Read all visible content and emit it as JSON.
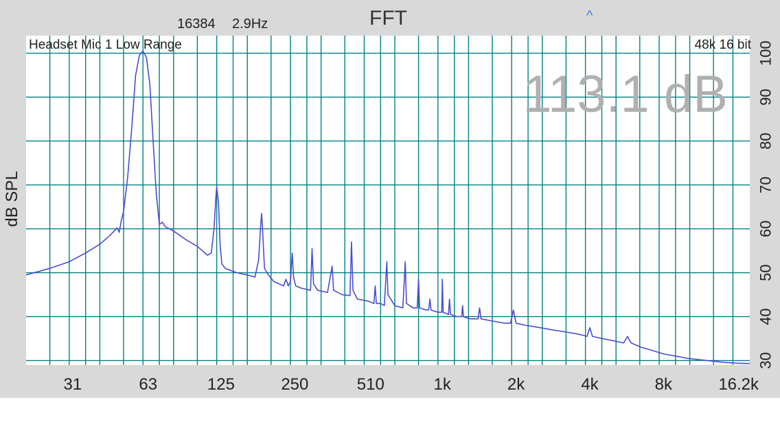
{
  "header": {
    "fft_size": "16384",
    "resolution": "2.9Hz",
    "title": "FFT",
    "caret_icon": "caret-up-icon",
    "caret_glyph": "^"
  },
  "colors": {
    "background": "#d9d9d9",
    "plot_background": "#ffffff",
    "grid": "#008080",
    "trace": "#4b4bd6",
    "readout": "#b0b0b0"
  },
  "chart_data": {
    "type": "line",
    "title": "FFT",
    "ylabel": "dB SPL",
    "xlabel": "",
    "x_scale": "log",
    "xlim": [
      20,
      18000
    ],
    "ylim": [
      29,
      104
    ],
    "grid": true,
    "input_label": "Headset Mic 1 Low Range",
    "format_label": "48k 16 bit",
    "level_readout": "113.1 dB",
    "x_ticks": [
      {
        "value": 31,
        "label": "31"
      },
      {
        "value": 63,
        "label": "63"
      },
      {
        "value": 125,
        "label": "125"
      },
      {
        "value": 250,
        "label": "250"
      },
      {
        "value": 510,
        "label": "510"
      },
      {
        "value": 1000,
        "label": "1k"
      },
      {
        "value": 2000,
        "label": "2k"
      },
      {
        "value": 4000,
        "label": "4k"
      },
      {
        "value": 8000,
        "label": "8k"
      },
      {
        "value": 16200,
        "label": "16.2k"
      }
    ],
    "y_ticks": [
      {
        "value": 30,
        "label": "30"
      },
      {
        "value": 40,
        "label": "40"
      },
      {
        "value": 50,
        "label": "50"
      },
      {
        "value": 60,
        "label": "60"
      },
      {
        "value": 70,
        "label": "70"
      },
      {
        "value": 80,
        "label": "80"
      },
      {
        "value": 90,
        "label": "90"
      },
      {
        "value": 100,
        "label": "100"
      }
    ],
    "series": [
      {
        "values": [
          [
            20,
            49.5
          ],
          [
            25,
            51
          ],
          [
            30,
            52.5
          ],
          [
            35,
            54.5
          ],
          [
            40,
            56.5
          ],
          [
            44,
            58.5
          ],
          [
            47,
            60.2
          ],
          [
            48,
            59.2
          ],
          [
            49,
            62
          ],
          [
            50,
            64
          ],
          [
            52,
            72
          ],
          [
            54,
            83
          ],
          [
            56,
            95
          ],
          [
            58,
            99.5
          ],
          [
            60,
            100.5
          ],
          [
            62,
            99
          ],
          [
            64,
            93
          ],
          [
            66,
            80
          ],
          [
            68,
            68
          ],
          [
            70,
            61
          ],
          [
            72,
            61.5
          ],
          [
            74,
            60.5
          ],
          [
            80,
            59.5
          ],
          [
            90,
            57.5
          ],
          [
            100,
            56
          ],
          [
            110,
            54
          ],
          [
            114,
            54.5
          ],
          [
            117,
            60
          ],
          [
            119,
            67
          ],
          [
            120,
            69.5
          ],
          [
            122,
            66
          ],
          [
            124,
            56
          ],
          [
            126,
            52
          ],
          [
            130,
            51
          ],
          [
            145,
            50
          ],
          [
            160,
            49.5
          ],
          [
            172,
            49
          ],
          [
            178,
            53
          ],
          [
            181,
            60
          ],
          [
            183,
            63.5
          ],
          [
            185,
            59
          ],
          [
            188,
            51
          ],
          [
            195,
            49.5
          ],
          [
            205,
            48
          ],
          [
            215,
            47.5
          ],
          [
            225,
            47
          ],
          [
            230,
            48.5
          ],
          [
            235,
            47
          ],
          [
            240,
            48
          ],
          [
            244,
            54.5
          ],
          [
            247,
            49
          ],
          [
            252,
            47
          ],
          [
            265,
            46.5
          ],
          [
            290,
            46
          ],
          [
            294,
            55.5
          ],
          [
            298,
            47.5
          ],
          [
            310,
            46
          ],
          [
            340,
            45.5
          ],
          [
            355,
            51.5
          ],
          [
            360,
            46
          ],
          [
            390,
            45
          ],
          [
            420,
            44.8
          ],
          [
            426,
            57
          ],
          [
            432,
            46
          ],
          [
            450,
            44
          ],
          [
            500,
            43.5
          ],
          [
            526,
            43
          ],
          [
            532,
            47
          ],
          [
            538,
            43
          ],
          [
            560,
            43
          ],
          [
            580,
            42.5
          ],
          [
            594,
            52.5
          ],
          [
            600,
            45
          ],
          [
            640,
            42.5
          ],
          [
            690,
            42
          ],
          [
            706,
            52.5
          ],
          [
            714,
            43
          ],
          [
            760,
            42
          ],
          [
            790,
            42
          ],
          [
            800,
            48.5
          ],
          [
            808,
            42
          ],
          [
            860,
            41.5
          ],
          [
            880,
            41.5
          ],
          [
            890,
            44
          ],
          [
            900,
            41.5
          ],
          [
            960,
            41
          ],
          [
            995,
            41
          ],
          [
            1000,
            48.5
          ],
          [
            1008,
            41
          ],
          [
            1060,
            40.5
          ],
          [
            1070,
            44
          ],
          [
            1080,
            40.5
          ],
          [
            1150,
            40
          ],
          [
            1200,
            40
          ],
          [
            1210,
            42.5
          ],
          [
            1220,
            40
          ],
          [
            1300,
            39.5
          ],
          [
            1400,
            39.5
          ],
          [
            1420,
            42
          ],
          [
            1440,
            39.5
          ],
          [
            1600,
            39
          ],
          [
            1800,
            38.5
          ],
          [
            1900,
            38.5
          ],
          [
            1950,
            41.5
          ],
          [
            2000,
            38.5
          ],
          [
            2200,
            38
          ],
          [
            2500,
            37.5
          ],
          [
            2800,
            37
          ],
          [
            3200,
            36.5
          ],
          [
            3600,
            36
          ],
          [
            3900,
            35.5
          ],
          [
            4000,
            37.5
          ],
          [
            4100,
            35.5
          ],
          [
            4500,
            35
          ],
          [
            5000,
            34.5
          ],
          [
            5500,
            34
          ],
          [
            5700,
            35.5
          ],
          [
            5900,
            34
          ],
          [
            6500,
            33
          ],
          [
            7000,
            32.5
          ],
          [
            8000,
            31.5
          ],
          [
            9000,
            31
          ],
          [
            10000,
            30.5
          ],
          [
            12000,
            30
          ],
          [
            14000,
            29.6
          ],
          [
            16000,
            29.4
          ],
          [
            18000,
            29.3
          ]
        ]
      }
    ]
  }
}
